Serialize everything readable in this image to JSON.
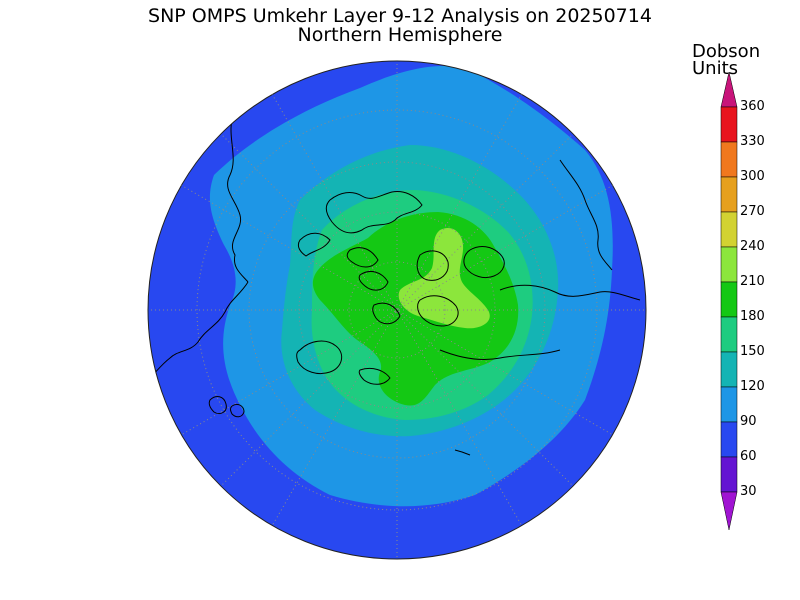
{
  "title": {
    "line1": "SNP OMPS Umkehr Layer 9-12 Analysis on 20250714",
    "line2": "Northern Hemisphere"
  },
  "colorbar": {
    "units_line1": "Dobson",
    "units_line2": "Units",
    "ticks": [
      "360",
      "330",
      "300",
      "270",
      "240",
      "210",
      "180",
      "150",
      "120",
      "90",
      "60",
      "30"
    ],
    "colors_top_to_bottom": [
      "#c8147a",
      "#e8141e",
      "#f0781e",
      "#e6a01e",
      "#d2d232",
      "#8ce63c",
      "#14c814",
      "#1ecc80",
      "#14b4b4",
      "#1e96e6",
      "#2848f0",
      "#6414d2",
      "#a014d2"
    ]
  },
  "map": {
    "projection": "polar stereographic",
    "hemisphere": "Northern Hemisphere",
    "field_levels_du": [
      60,
      90,
      120,
      150,
      180,
      210,
      240
    ],
    "level_colors": {
      "60": "#2848f0",
      "90": "#1e96e6",
      "120": "#14b4b4",
      "150": "#1ecc80",
      "180": "#14c814",
      "210": "#8ce63c",
      "240": "#d2d232"
    }
  }
}
